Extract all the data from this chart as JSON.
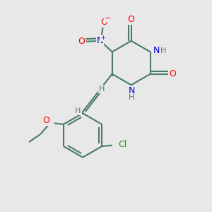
{
  "bg_color": "#e8e8e8",
  "bond_color": "#4a7a6a",
  "bond_width": 1.5,
  "atom_colors": {
    "O": "#ff0000",
    "N": "#0000cc",
    "H": "#4a7a6a",
    "Cl": "#00aa00",
    "C": "#4a7a6a"
  },
  "font_size": 9,
  "fig_size": [
    3.0,
    3.0
  ],
  "dpi": 100,
  "xlim": [
    0,
    10
  ],
  "ylim": [
    0,
    10
  ]
}
